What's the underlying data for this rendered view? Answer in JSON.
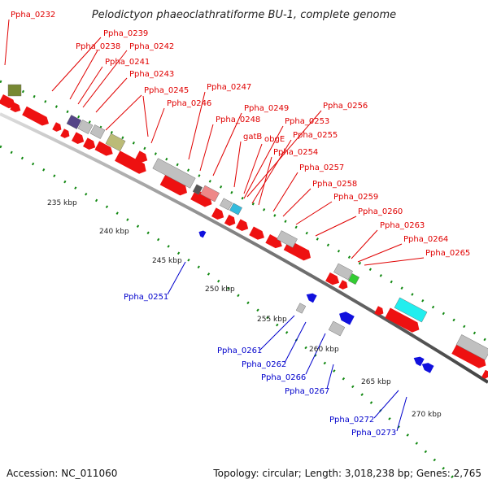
{
  "header": {
    "title": "Pelodictyon phaeoclathratiforme BU-1, complete genome"
  },
  "footer": {
    "accession": "Accession: NC_011060",
    "topology": "Topology: circular; Length: 3,018,238 bp; Genes: 2,765"
  },
  "colors": {
    "forward_gene": "#ee1111",
    "reverse_gene": "#1111dd",
    "unknown_gene": "#c0c0c0",
    "backbone": "#888888",
    "tick": "#118811",
    "label_red": "#e00000",
    "label_blue": "#0000cc"
  },
  "kbp_ticks": [
    "235 kbp",
    "240 kbp",
    "245 kbp",
    "250 kbp",
    "255 kbp",
    "260 kbp",
    "265 kbp",
    "270 kbp"
  ],
  "forward_labels": [
    "Ppha_0232",
    "Ppha_0239",
    "Ppha_0238",
    "Ppha_0242",
    "Ppha_0241",
    "Ppha_0243",
    "Ppha_0245",
    "Ppha_0247",
    "Ppha_0246",
    "Ppha_0249",
    "Ppha_0248",
    "gatB",
    "obgE",
    "Ppha_0256",
    "Ppha_0253",
    "Ppha_0255",
    "Ppha_0254",
    "Ppha_0257",
    "Ppha_0258",
    "Ppha_0259",
    "Ppha_0260",
    "Ppha_0263",
    "Ppha_0264",
    "Ppha_0265"
  ],
  "reverse_labels": [
    "Ppha_0251",
    "Ppha_0261",
    "Ppha_0262",
    "Ppha_0266",
    "Ppha_0267",
    "Ppha_0272",
    "Ppha_0273"
  ]
}
